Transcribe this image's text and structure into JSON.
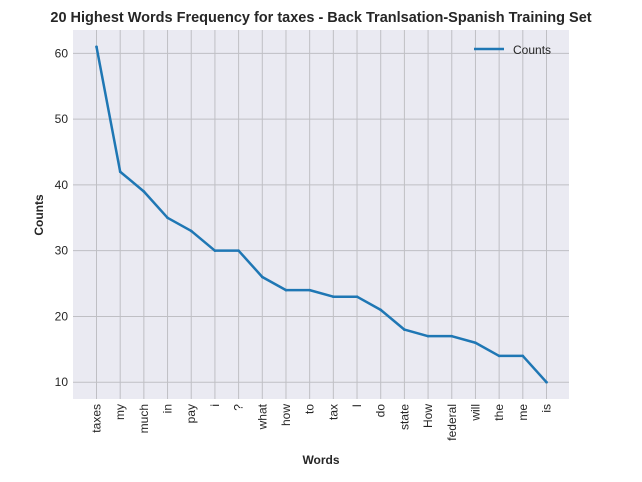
{
  "chart_data": {
    "type": "line",
    "title": "20 Highest Words Frequency for taxes - Back Tranlsation-Spanish Training Set",
    "xlabel": "Words",
    "ylabel": "Counts",
    "categories": [
      "taxes",
      "my",
      "much",
      "in",
      "pay",
      "i",
      "?",
      "what",
      "how",
      "to",
      "tax",
      "I",
      "do",
      "state",
      "How",
      "federal",
      "will",
      "the",
      "me",
      "is"
    ],
    "series": [
      {
        "name": "Counts",
        "values": [
          61,
          42,
          39,
          35,
          33,
          30,
          30,
          26,
          24,
          24,
          23,
          23,
          21,
          18,
          17,
          17,
          16,
          14,
          14,
          10
        ]
      }
    ],
    "ylim": [
      7.45,
      63.55
    ],
    "yticks": [
      10,
      20,
      30,
      40,
      50,
      60
    ],
    "grid": true,
    "legend": "top-right",
    "colors": {
      "line": "#1f77b4",
      "plot_bg": "#eaeaf2",
      "grid": "#bfbfc4",
      "text": "#262626"
    }
  }
}
